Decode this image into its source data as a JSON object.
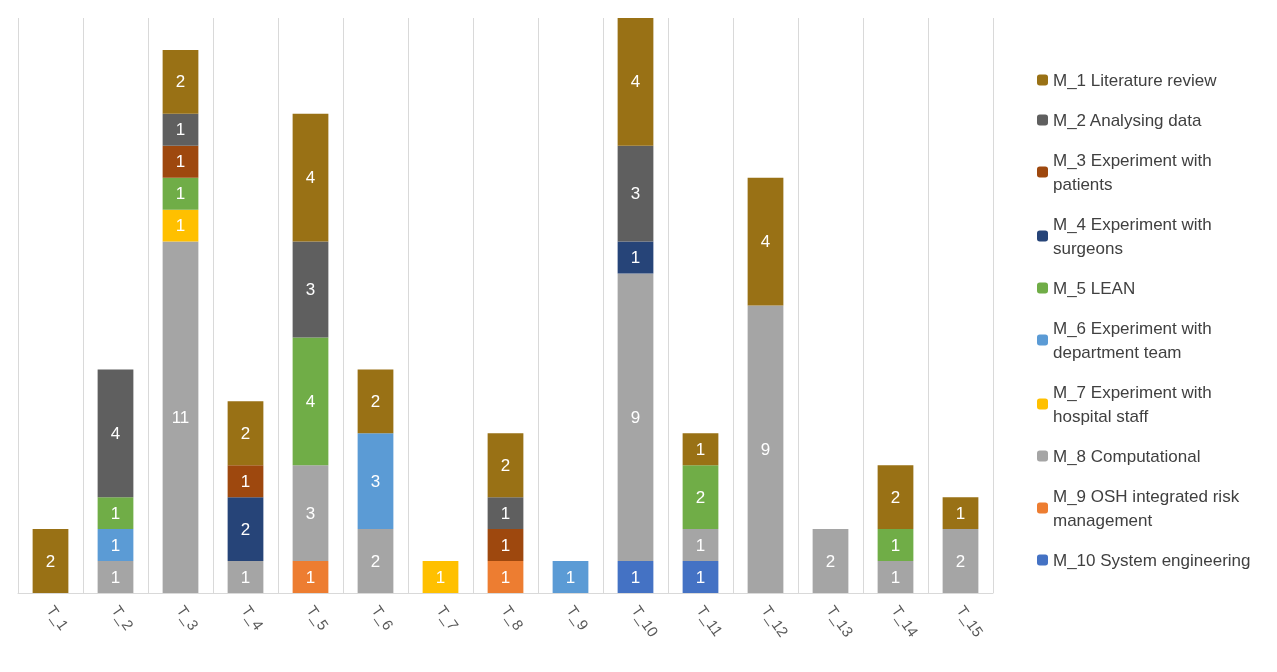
{
  "chart_data": {
    "type": "bar",
    "stacked": true,
    "data_labels": true,
    "grid": "x",
    "legend": "right",
    "categories": [
      "T_1",
      "T_2",
      "T_3",
      "T_4",
      "T_5",
      "T_6",
      "T_7",
      "T_8",
      "T_9",
      "T_10",
      "T_11",
      "T_12",
      "T_13",
      "T_14",
      "T_15"
    ],
    "series": [
      {
        "name": "M_10 System engineering",
        "color": "#4472c4",
        "values": [
          null,
          null,
          null,
          null,
          null,
          null,
          null,
          null,
          null,
          1,
          1,
          null,
          null,
          null,
          null
        ]
      },
      {
        "name": "M_9 OSH integrated risk management",
        "color": "#ed7d31",
        "values": [
          null,
          null,
          null,
          null,
          1,
          null,
          null,
          1,
          null,
          null,
          null,
          null,
          null,
          null,
          null
        ]
      },
      {
        "name": "M_8 Computational",
        "color": "#a5a5a5",
        "values": [
          null,
          1,
          11,
          1,
          3,
          2,
          null,
          null,
          null,
          9,
          1,
          9,
          2,
          1,
          2
        ]
      },
      {
        "name": "M_7 Experiment with hospital staff",
        "color": "#ffc000",
        "values": [
          null,
          null,
          1,
          null,
          null,
          null,
          1,
          null,
          null,
          null,
          null,
          null,
          null,
          null,
          null
        ]
      },
      {
        "name": "M_6 Experiment with department team",
        "color": "#5b9bd5",
        "values": [
          null,
          1,
          null,
          null,
          null,
          3,
          null,
          null,
          1,
          null,
          null,
          null,
          null,
          null,
          null
        ]
      },
      {
        "name": "M_5 LEAN",
        "color": "#70ad47",
        "values": [
          null,
          1,
          1,
          null,
          4,
          null,
          null,
          null,
          null,
          null,
          2,
          null,
          null,
          1,
          null
        ]
      },
      {
        "name": "M_4 Experiment with surgeons",
        "color": "#264478",
        "values": [
          null,
          null,
          null,
          2,
          null,
          null,
          null,
          null,
          null,
          1,
          null,
          null,
          null,
          null,
          null
        ]
      },
      {
        "name": "M_3 Experiment with patients",
        "color": "#9e480e",
        "values": [
          null,
          null,
          1,
          1,
          null,
          null,
          null,
          1,
          null,
          null,
          null,
          null,
          null,
          null,
          null
        ]
      },
      {
        "name": "M_2 Analysing data",
        "color": "#5f5f5f",
        "values": [
          null,
          4,
          1,
          null,
          3,
          null,
          null,
          1,
          null,
          3,
          null,
          null,
          null,
          null,
          null
        ]
      },
      {
        "name": "M_1 Literature review",
        "color": "#997115",
        "values": [
          2,
          null,
          2,
          2,
          4,
          2,
          null,
          2,
          null,
          4,
          1,
          4,
          null,
          2,
          1
        ]
      }
    ]
  }
}
